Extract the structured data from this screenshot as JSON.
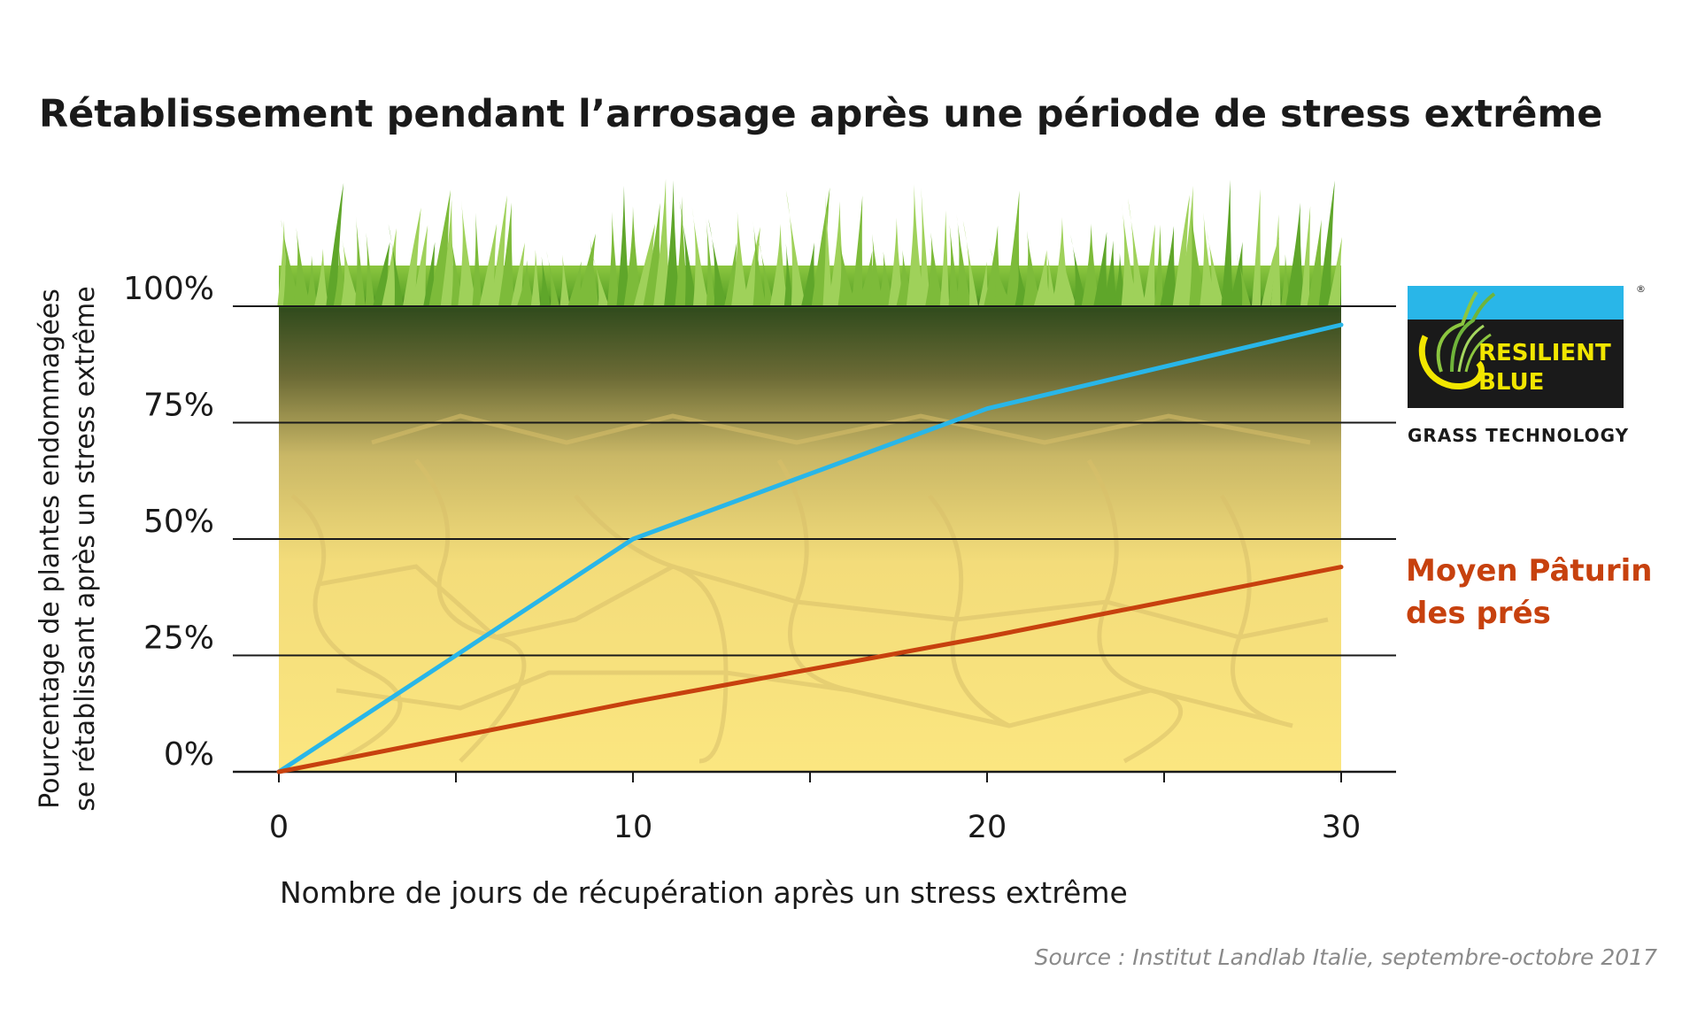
{
  "title": "Rétablissement pendant l’arrosage après une période de stress extrême",
  "source": "Source : Institut Landlab Italie, septembre-octobre 2017",
  "logo": {
    "line1": "RESILIENT",
    "line2": "BLUE",
    "tagline": "GRASS TECHNOLOGY",
    "registered": "®",
    "colors": {
      "top": "#29b6e8",
      "bottom": "#1a1a1a",
      "text": "#f2e600"
    }
  },
  "colors": {
    "resilient_blue": "#29b6e8",
    "moyen_paturin": "#c7410e",
    "grass": "#5fa62a",
    "soil_dark": "#2f4a1c",
    "soil_light": "#fbe680",
    "gridline": "#1a1a1a"
  },
  "chart_data": {
    "type": "line",
    "title": "Rétablissement pendant l’arrosage après une période de stress extrême",
    "xlabel": "Nombre de jours de récupération après un stress extrême",
    "ylabel_lines": [
      "Pourcentage de plantes endommagées",
      "se rétablissant après un stress extrême"
    ],
    "xlim": [
      0,
      30
    ],
    "ylim": [
      0,
      100
    ],
    "x_ticks": [
      0,
      10,
      20,
      30
    ],
    "x_tick_labels": [
      "0",
      "10",
      "20",
      "30"
    ],
    "x_minor_ticks": [
      5,
      15,
      25
    ],
    "y_ticks": [
      0,
      25,
      50,
      75,
      100
    ],
    "y_tick_labels": [
      "0%",
      "25%",
      "50%",
      "75%",
      "100%"
    ],
    "grid": true,
    "series": [
      {
        "name": "Resilient Blue",
        "color": "#29b6e8",
        "x": [
          0,
          10,
          20,
          30
        ],
        "y": [
          0,
          50,
          78,
          96
        ]
      },
      {
        "name": "Moyen Pâturin des prés",
        "label_lines": [
          "Moyen Pâturin",
          "des prés"
        ],
        "color": "#c7410e",
        "x": [
          0,
          10,
          20,
          30
        ],
        "y": [
          0,
          15,
          29,
          44
        ]
      }
    ]
  }
}
